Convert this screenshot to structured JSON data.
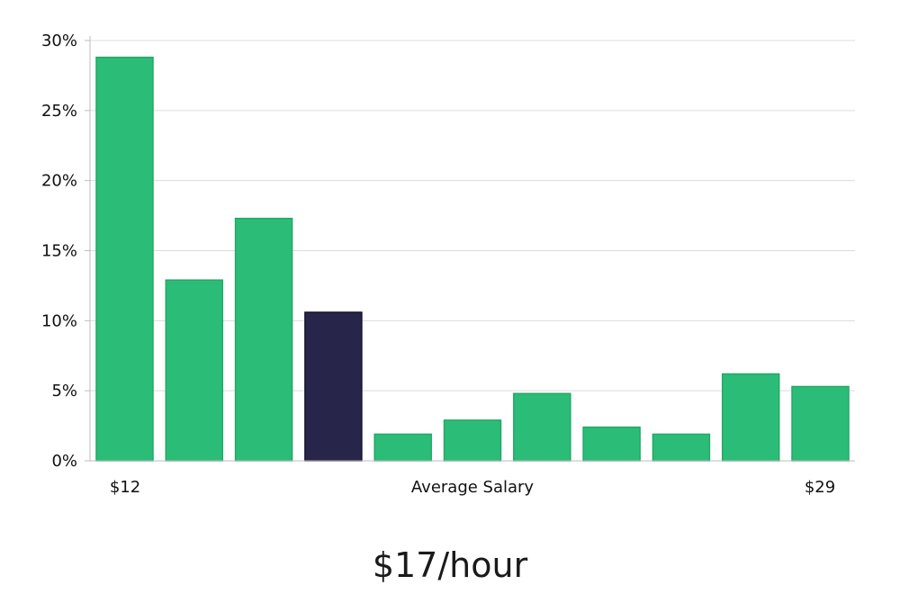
{
  "colors": {
    "bar": "#2bbd77",
    "bar_stroke": "#23a866",
    "highlight": "#28254a",
    "highlight_stroke": "#14122e",
    "grid": "#dcdcdc",
    "axis": "#bdbdbd"
  },
  "headline": "$17/hour",
  "chart_data": {
    "type": "bar",
    "values": [
      28.8,
      12.9,
      17.3,
      10.6,
      1.9,
      2.9,
      4.8,
      2.4,
      1.9,
      6.2,
      5.3
    ],
    "highlight_index": 3,
    "ylim": [
      0,
      30
    ],
    "yticks": [
      0,
      5,
      10,
      15,
      20,
      25,
      30
    ],
    "ytick_format": "percent",
    "xlabel": "Average Salary",
    "x_start_label": "$12",
    "x_end_label": "$29",
    "grid": true,
    "title": ""
  }
}
